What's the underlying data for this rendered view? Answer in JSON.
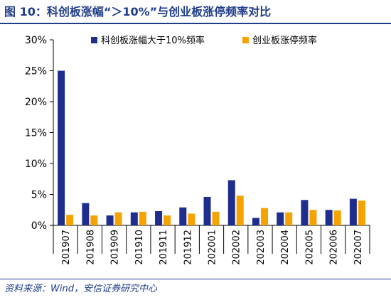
{
  "title": "图 10：科创板涨幅“＞10%”与创业板涨停频率对比",
  "source": "资料来源：Wind，安信证券研究中心",
  "colors": {
    "series1": "#1f2d8c",
    "series2": "#f5a300",
    "accent": "#1f3c88"
  },
  "chart_data": {
    "type": "bar",
    "categories": [
      "201907",
      "201908",
      "201909",
      "201910",
      "201911",
      "201912",
      "202001",
      "202002",
      "202003",
      "202004",
      "202005",
      "202006",
      "202007"
    ],
    "series": [
      {
        "name": "科创板涨幅大于10%频率",
        "values": [
          25.0,
          3.6,
          1.6,
          2.1,
          2.3,
          2.9,
          4.6,
          7.3,
          1.2,
          2.1,
          4.1,
          2.5,
          4.3
        ]
      },
      {
        "name": "创业板涨停频率",
        "values": [
          1.7,
          1.6,
          2.1,
          2.2,
          1.6,
          1.9,
          2.2,
          4.8,
          2.8,
          2.1,
          2.5,
          2.4,
          4.0
        ]
      }
    ],
    "yticks": [
      "0%",
      "5%",
      "10%",
      "15%",
      "20%",
      "25%",
      "30%"
    ],
    "ylim": [
      0,
      30
    ],
    "legend_position": "top-right",
    "grid": false
  }
}
